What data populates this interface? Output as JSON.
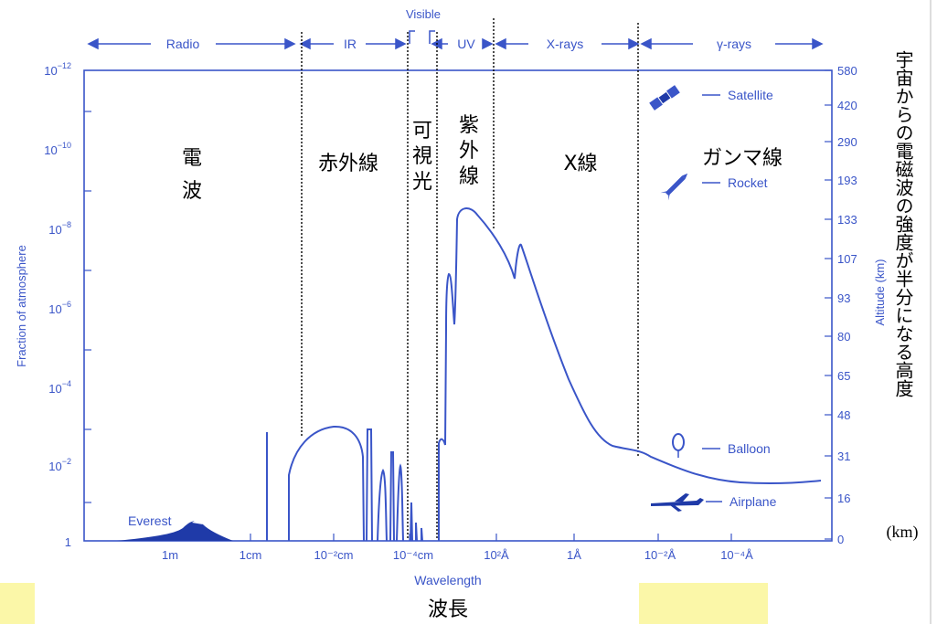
{
  "chart_data": {
    "type": "line",
    "title_jp_bottom": "波長",
    "xlabel": "Wavelength",
    "ylabel_left": "Fraction of atmosphere",
    "ylabel_right": "Altitude (km)",
    "right_annotation_jp": "宇宙からの電磁波の強度が半分になる高度",
    "right_annotation_unit": "(km)",
    "x_ticks": [
      "1m",
      "1cm",
      "10⁻²cm",
      "10⁻⁴cm",
      "10²Å",
      "1Å",
      "10⁻²Å",
      "10⁻⁴Å"
    ],
    "y_left_ticks": [
      {
        "base": "10",
        "exp": "−12"
      },
      {
        "base": "10",
        "exp": "−10"
      },
      {
        "base": "10",
        "exp": "−8"
      },
      {
        "base": "10",
        "exp": "−6"
      },
      {
        "base": "10",
        "exp": "−4"
      },
      {
        "base": "10",
        "exp": "−2"
      },
      {
        "base": "1",
        "exp": ""
      }
    ],
    "y_right_ticks": [
      "580",
      "420",
      "290",
      "193",
      "133",
      "107",
      "93",
      "80",
      "65",
      "48",
      "31",
      "16",
      "0"
    ],
    "bands_en": [
      "Radio",
      "IR",
      "Visible",
      "UV",
      "X-rays",
      "γ-rays"
    ],
    "bands_jp": {
      "radio": [
        "電",
        "波"
      ],
      "ir": "赤外線",
      "visible": [
        "可",
        "視",
        "光"
      ],
      "uv": [
        "紫",
        "外",
        "線"
      ],
      "xray": "X線",
      "gamma": "ガンマ線"
    },
    "altitude_markers": [
      "Satellite",
      "Rocket",
      "Balloon",
      "Airplane"
    ],
    "mountain_label": "Everest",
    "colors": {
      "accent": "#3a55c8",
      "highlight": "#fbf7a8"
    }
  }
}
